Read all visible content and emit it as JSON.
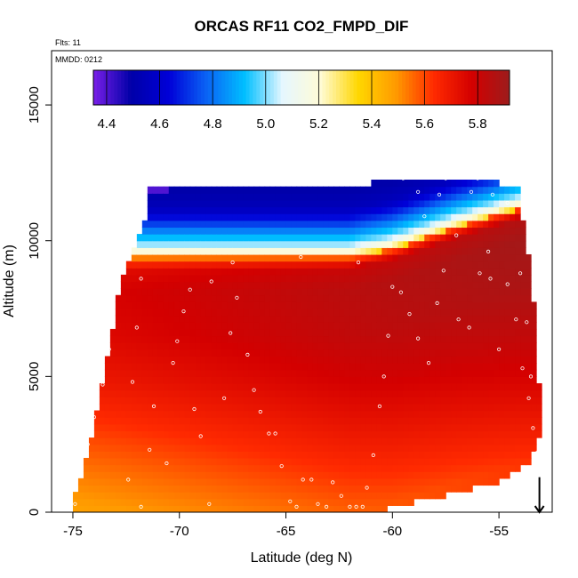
{
  "chart_data": {
    "type": "heatmap",
    "title": "ORCAS RF11 CO2_FMPD_DIF",
    "annotations": [
      "Flts: 11",
      "MMDD: 0212"
    ],
    "xlabel": "Latitude (deg N)",
    "ylabel": "Altitude (m)",
    "xlim": [
      -76,
      -52.5
    ],
    "ylim": [
      0,
      17000
    ],
    "x_ticks": [
      -75,
      -70,
      -65,
      -60,
      -55
    ],
    "y_ticks": [
      0,
      5000,
      10000,
      15000
    ],
    "x_tick_labels": [
      "-75",
      "-70",
      "-65",
      "-60",
      "-55"
    ],
    "y_tick_labels": [
      "0",
      "5000",
      "10000",
      "15000"
    ],
    "grid": false,
    "colorbar": {
      "position": "top-left inset",
      "range": [
        4.35,
        5.92
      ],
      "ticks": [
        4.4,
        4.6,
        4.8,
        5.0,
        5.2,
        5.4,
        5.6,
        5.8
      ],
      "tick_labels": [
        "4.4",
        "4.6",
        "4.8",
        "5.0",
        "5.2",
        "5.4",
        "5.6",
        "5.8"
      ],
      "colors": [
        "#7a1fe8",
        "#0000a8",
        "#0000d8",
        "#0a64f5",
        "#00bfff",
        "#e6f7ff",
        "#fffbd6",
        "#ffd700",
        "#ff9a00",
        "#ff2a00",
        "#d40000",
        "#9c1c1c"
      ]
    },
    "domain_envelope": {
      "bottom": [
        [
          -75.1,
          0
        ],
        [
          -61,
          0
        ],
        [
          -55,
          1100
        ],
        [
          -53.5,
          1900
        ],
        [
          -53.3,
          2300
        ]
      ],
      "left": [
        [
          -75.1,
          0
        ],
        [
          -74.2,
          2500
        ],
        [
          -73.7,
          4500
        ],
        [
          -73.2,
          6500
        ],
        [
          -72.8,
          8400
        ],
        [
          -72.2,
          9700
        ],
        [
          -71.6,
          10900
        ],
        [
          -71.5,
          12000
        ]
      ],
      "top": [
        [
          -71.5,
          12000
        ],
        [
          -61,
          12000
        ],
        [
          -61,
          12250
        ],
        [
          -55.1,
          12250
        ],
        [
          -55,
          12000
        ],
        [
          -54.1,
          12000
        ]
      ],
      "right": [
        [
          -54.1,
          12000
        ],
        [
          -53.9,
          10800
        ],
        [
          -53.6,
          9500
        ],
        [
          -53.4,
          8300
        ],
        [
          -53.3,
          6000
        ],
        [
          -53.1,
          4500
        ],
        [
          -52.9,
          3200
        ],
        [
          -53.3,
          2300
        ]
      ]
    },
    "field_model": {
      "tropopause_altitude_m": [
        [
          -72,
          9400
        ],
        [
          -62,
          9400
        ],
        [
          -60,
          9700
        ],
        [
          -57,
          10500
        ],
        [
          -54,
          11200
        ]
      ],
      "above_tropopause": [
        [
          0,
          5.35
        ],
        [
          200,
          5.2
        ],
        [
          500,
          5.0
        ],
        [
          900,
          4.85
        ],
        [
          1300,
          4.7
        ],
        [
          1800,
          4.55
        ],
        [
          2400,
          4.5
        ]
      ],
      "below_tropopause": {
        "lat_range": [
          -75,
          -54
        ],
        "south_profile": [
          [
            0,
            5.47
          ],
          [
            1200,
            5.52
          ],
          [
            2500,
            5.58
          ],
          [
            3500,
            5.63
          ],
          [
            4800,
            5.69
          ],
          [
            6500,
            5.74
          ],
          [
            8200,
            5.76
          ],
          [
            9000,
            5.72
          ],
          [
            9400,
            5.5
          ]
        ],
        "north_profile": [
          [
            0,
            5.62
          ],
          [
            1200,
            5.68
          ],
          [
            2500,
            5.74
          ],
          [
            3500,
            5.78
          ],
          [
            4800,
            5.83
          ],
          [
            6500,
            5.88
          ],
          [
            8200,
            5.9
          ],
          [
            9000,
            5.86
          ],
          [
            9400,
            5.6
          ]
        ]
      },
      "upper_south_purple_patch": [
        -71.5,
        -70.5,
        11700,
        12000,
        4.4
      ]
    },
    "flight_track_points": [
      [
        -74.9,
        300
      ],
      [
        -74.6,
        1500
      ],
      [
        -74.3,
        2500
      ],
      [
        -74.0,
        3500
      ],
      [
        -73.6,
        4700
      ],
      [
        -73.3,
        6000
      ],
      [
        -73.1,
        7400
      ],
      [
        -73.0,
        8200
      ],
      [
        -72.4,
        1200
      ],
      [
        -72.2,
        4800
      ],
      [
        -72.0,
        6800
      ],
      [
        -71.8,
        200
      ],
      [
        -71.4,
        2300
      ],
      [
        -71.2,
        3900
      ],
      [
        -70.6,
        1800
      ],
      [
        -70.3,
        5500
      ],
      [
        -70.1,
        6300
      ],
      [
        -69.8,
        7400
      ],
      [
        -69.5,
        8200
      ],
      [
        -69.3,
        3800
      ],
      [
        -69.0,
        2800
      ],
      [
        -68.6,
        300
      ],
      [
        -67.9,
        4200
      ],
      [
        -67.6,
        6600
      ],
      [
        -67.3,
        7900
      ],
      [
        -66.8,
        5800
      ],
      [
        -66.5,
        4500
      ],
      [
        -66.2,
        3700
      ],
      [
        -65.8,
        2900
      ],
      [
        -65.5,
        2900
      ],
      [
        -65.2,
        1700
      ],
      [
        -64.8,
        400
      ],
      [
        -64.5,
        200
      ],
      [
        -64.2,
        1200
      ],
      [
        -63.8,
        1200
      ],
      [
        -63.5,
        300
      ],
      [
        -63.1,
        200
      ],
      [
        -62.8,
        1100
      ],
      [
        -62.4,
        600
      ],
      [
        -62.0,
        200
      ],
      [
        -61.7,
        200
      ],
      [
        -61.4,
        200
      ],
      [
        -61.2,
        900
      ],
      [
        -60.9,
        2100
      ],
      [
        -60.6,
        3900
      ],
      [
        -60.4,
        5000
      ],
      [
        -60.2,
        6500
      ],
      [
        -60.0,
        8300
      ],
      [
        -59.6,
        8100
      ],
      [
        -59.2,
        7300
      ],
      [
        -58.8,
        6400
      ],
      [
        -58.3,
        5500
      ],
      [
        -57.9,
        7700
      ],
      [
        -57.6,
        8900
      ],
      [
        -56.9,
        7100
      ],
      [
        -56.4,
        6800
      ],
      [
        -55.9,
        8800
      ],
      [
        -55.4,
        8600
      ],
      [
        -55.0,
        6000
      ],
      [
        -54.6,
        8400
      ],
      [
        -54.2,
        7100
      ],
      [
        -53.9,
        5300
      ],
      [
        -53.6,
        4200
      ],
      [
        -53.4,
        3100
      ],
      [
        -53.2,
        2200
      ],
      [
        -54.0,
        8800
      ],
      [
        -53.7,
        7000
      ],
      [
        -53.5,
        5000
      ],
      [
        -71.0,
        12200
      ],
      [
        -69.0,
        12200
      ],
      [
        -67.0,
        12200
      ],
      [
        -65.0,
        12200
      ],
      [
        -63.0,
        12200
      ],
      [
        -61.5,
        12200
      ],
      [
        -59.5,
        12300
      ],
      [
        -57.5,
        12300
      ],
      [
        -56.0,
        12300
      ],
      [
        -58.8,
        11800
      ],
      [
        -57.8,
        11700
      ],
      [
        -56.3,
        11800
      ],
      [
        -55.3,
        11700
      ],
      [
        -54.6,
        11400
      ],
      [
        -58.5,
        10900
      ],
      [
        -57.0,
        10200
      ],
      [
        -55.5,
        9600
      ],
      [
        -67.5,
        9200
      ],
      [
        -64.3,
        9400
      ],
      [
        -61.6,
        9200
      ],
      [
        -68.5,
        8500
      ],
      [
        -71.8,
        8600
      ]
    ],
    "flight_direction_arrow": {
      "x": -53.1,
      "from_y": 700,
      "to_y": 0,
      "direction": "down"
    }
  }
}
